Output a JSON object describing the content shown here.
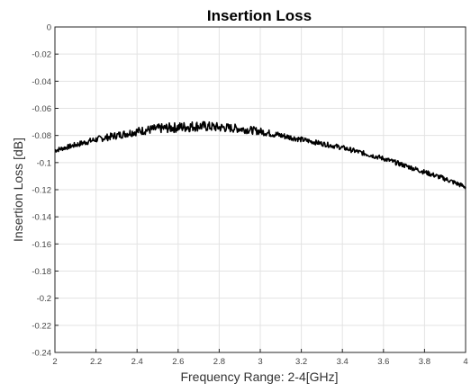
{
  "chart_data": {
    "type": "line",
    "title": "Insertion Loss",
    "xlabel": "Frequency Range: 2-4[GHz]",
    "ylabel": "Insertion Loss [dB]",
    "xlim": [
      2,
      4
    ],
    "ylim": [
      -0.24,
      0
    ],
    "grid": true,
    "x_ticks": [
      "2",
      "2.2",
      "2.4",
      "2.6",
      "2.8",
      "3",
      "3.2",
      "3.4",
      "3.6",
      "3.8",
      "4"
    ],
    "y_ticks": [
      "0",
      "-0.02",
      "-0.04",
      "-0.06",
      "-0.08",
      "-0.1",
      "-0.12",
      "-0.14",
      "-0.16",
      "-0.18",
      "-0.2",
      "-0.22",
      "-0.24"
    ],
    "series": [
      {
        "color": "#000000",
        "x": [
          2.0,
          2.1,
          2.2,
          2.3,
          2.4,
          2.5,
          2.6,
          2.7,
          2.8,
          2.9,
          3.0,
          3.1,
          3.2,
          3.3,
          3.4,
          3.5,
          3.6,
          3.7,
          3.8,
          3.9,
          4.0
        ],
        "values": [
          -0.091,
          -0.087,
          -0.083,
          -0.08,
          -0.077,
          -0.075,
          -0.074,
          -0.073,
          -0.074,
          -0.075,
          -0.077,
          -0.08,
          -0.083,
          -0.086,
          -0.089,
          -0.093,
          -0.097,
          -0.102,
          -0.107,
          -0.112,
          -0.118
        ]
      }
    ]
  }
}
